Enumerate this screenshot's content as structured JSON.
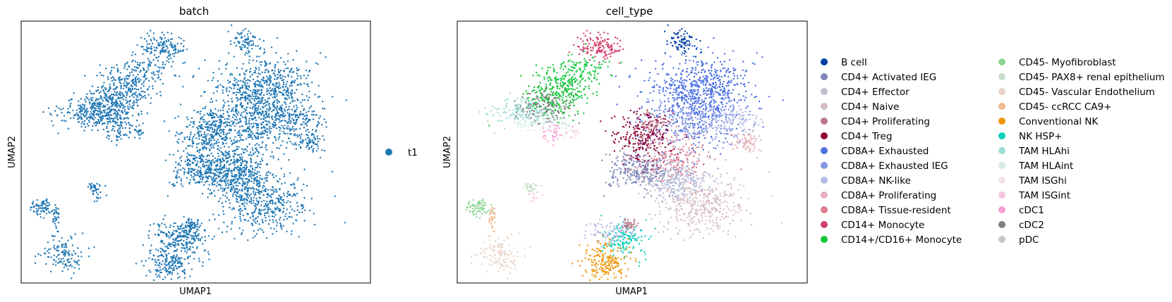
{
  "chart_data": [
    {
      "type": "scatter",
      "title": "batch",
      "xlabel": "UMAP1",
      "ylabel": "UMAP2",
      "grid": false,
      "legend_position": "right",
      "series": [
        {
          "name": "t1",
          "color": "#1f77b4"
        }
      ]
    },
    {
      "type": "scatter",
      "title": "cell_type",
      "xlabel": "UMAP1",
      "ylabel": "UMAP2",
      "grid": false,
      "legend_position": "right",
      "series": [
        {
          "name": "B cell",
          "color": "#023fa5"
        },
        {
          "name": "CD4+ Activated IEG",
          "color": "#7d87b9"
        },
        {
          "name": "CD4+ Effector",
          "color": "#bec1d4"
        },
        {
          "name": "CD4+ Naive",
          "color": "#d6bcc0"
        },
        {
          "name": "CD4+ Proliferating",
          "color": "#bb7784"
        },
        {
          "name": "CD4+ Treg",
          "color": "#8e063b"
        },
        {
          "name": "CD8A+ Exhausted",
          "color": "#4a6fe3"
        },
        {
          "name": "CD8A+ Exhausted IEG",
          "color": "#8595e1"
        },
        {
          "name": "CD8A+ NK-like",
          "color": "#b5bbe3"
        },
        {
          "name": "CD8A+ Proliferating",
          "color": "#e6afb9"
        },
        {
          "name": "CD8A+ Tissue-resident",
          "color": "#e07b91"
        },
        {
          "name": "CD14+ Monocyte",
          "color": "#d33f6a"
        },
        {
          "name": "CD14+/CD16+ Monocyte",
          "color": "#11c638"
        },
        {
          "name": "CD45- Myofibroblast",
          "color": "#8dd593"
        },
        {
          "name": "CD45- PAX8+ renal epithelium",
          "color": "#c6dec7"
        },
        {
          "name": "CD45- Vascular Endothelium",
          "color": "#ead3c6"
        },
        {
          "name": "CD45- ccRCC CA9+",
          "color": "#f0b98d"
        },
        {
          "name": "Conventional NK",
          "color": "#ef9708"
        },
        {
          "name": "NK HSP+",
          "color": "#0fcfc0"
        },
        {
          "name": "TAM HLAhi",
          "color": "#9cded6"
        },
        {
          "name": "TAM HLAint",
          "color": "#d5eae7"
        },
        {
          "name": "TAM ISGhi",
          "color": "#f3e1eb"
        },
        {
          "name": "TAM ISGint",
          "color": "#f6c4e1"
        },
        {
          "name": "cDC1",
          "color": "#f79cd4"
        },
        {
          "name": "cDC2",
          "color": "#7f7f7f"
        },
        {
          "name": "pDC",
          "color": "#c7c7c7"
        }
      ]
    }
  ]
}
